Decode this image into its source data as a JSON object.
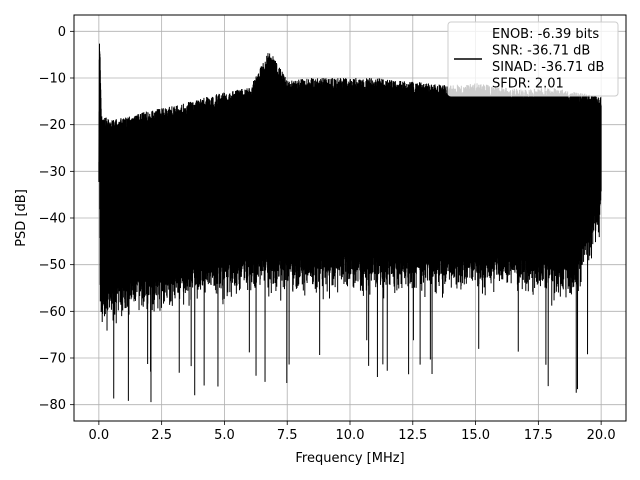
{
  "chart_data": {
    "type": "line",
    "title": "",
    "xlabel": "Frequency [MHz]",
    "ylabel": "PSD [dB]",
    "xlim": [
      -0.99,
      20.99
    ],
    "ylim": [
      -83.5,
      3.5
    ],
    "x_ticks": [
      0.0,
      2.5,
      5.0,
      7.5,
      10.0,
      12.5,
      15.0,
      17.5,
      20.0
    ],
    "x_tick_labels": [
      "0.0",
      "2.5",
      "5.0",
      "7.5",
      "10.0",
      "12.5",
      "15.0",
      "17.5",
      "20.0"
    ],
    "y_ticks": [
      0,
      -10,
      -20,
      -30,
      -40,
      -50,
      -60,
      -70,
      -80
    ],
    "y_tick_labels": [
      "0",
      "−10",
      "−20",
      "−30",
      "−40",
      "−50",
      "−60",
      "−70",
      "−80"
    ],
    "grid": true,
    "legend_position": "upper right",
    "series": [
      {
        "name": "ENOB: -6.39 bits\nSNR: -36.71 dB\nSINAD: -36.71 dB\nSFDR: 2.01",
        "color": "#000000",
        "description_envelope": {
          "x": [
            0.0,
            0.02,
            0.05,
            0.1,
            0.5,
            1.0,
            2.0,
            3.0,
            4.0,
            5.0,
            6.0,
            6.8,
            7.5,
            8.5,
            10.0,
            11.0,
            12.0,
            13.0,
            14.0,
            15.0,
            16.0,
            17.0,
            18.0,
            19.0,
            20.0
          ],
          "upper": [
            -28,
            -0.5,
            -3.5,
            -18,
            -19,
            -18.5,
            -17,
            -16,
            -14.5,
            -13,
            -12,
            -4,
            -10.5,
            -10,
            -10,
            -10,
            -10.5,
            -11,
            -11.5,
            -11,
            -12,
            -12.5,
            -12,
            -13,
            -14
          ],
          "lower": [
            -42,
            -30,
            -62,
            -66,
            -65,
            -63,
            -62,
            -61,
            -60,
            -59,
            -58,
            -58,
            -58,
            -58,
            -58,
            -58,
            -58,
            -58,
            -58,
            -58,
            -58,
            -58,
            -59,
            -60,
            -44
          ]
        }
      }
    ]
  }
}
